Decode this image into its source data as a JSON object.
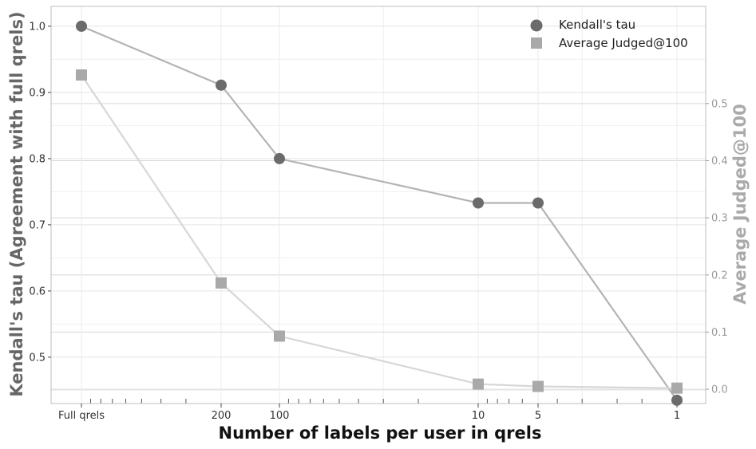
{
  "chart_data": {
    "type": "line",
    "x_categories": [
      "Full qrels",
      "200",
      "100",
      "10",
      "5",
      "1"
    ],
    "series": [
      {
        "name": "Kendall's tau",
        "axis": "left",
        "marker": "circle",
        "line_color": "#b4b4b4",
        "marker_color": "#6b6b6b",
        "values": [
          1.0,
          0.911,
          0.8,
          0.733,
          0.733,
          0.435
        ]
      },
      {
        "name": "Average Judged@100",
        "axis": "right",
        "marker": "square",
        "line_color": "#d7d7d7",
        "marker_color": "#a9a9a9",
        "values": [
          0.55,
          0.186,
          0.093,
          0.009,
          0.005,
          0.002
        ]
      }
    ],
    "xlabel": "Number of labels per user in qrels",
    "ylabel_left": "Kendall's tau (Agreement with full qrels)",
    "ylabel_right": "Average Judged@100",
    "y_left_ticks": [
      "0.5",
      "0.6",
      "0.7",
      "0.8",
      "0.9",
      "1.0"
    ],
    "y_right_ticks": [
      "0.0",
      "0.1",
      "0.2",
      "0.3",
      "0.4",
      "0.5"
    ],
    "y_left_range": [
      0.43,
      1.03
    ],
    "y_right_range": [
      -0.025,
      0.67
    ],
    "x_scale": "log",
    "grid": true,
    "legend_position": "top-right"
  }
}
